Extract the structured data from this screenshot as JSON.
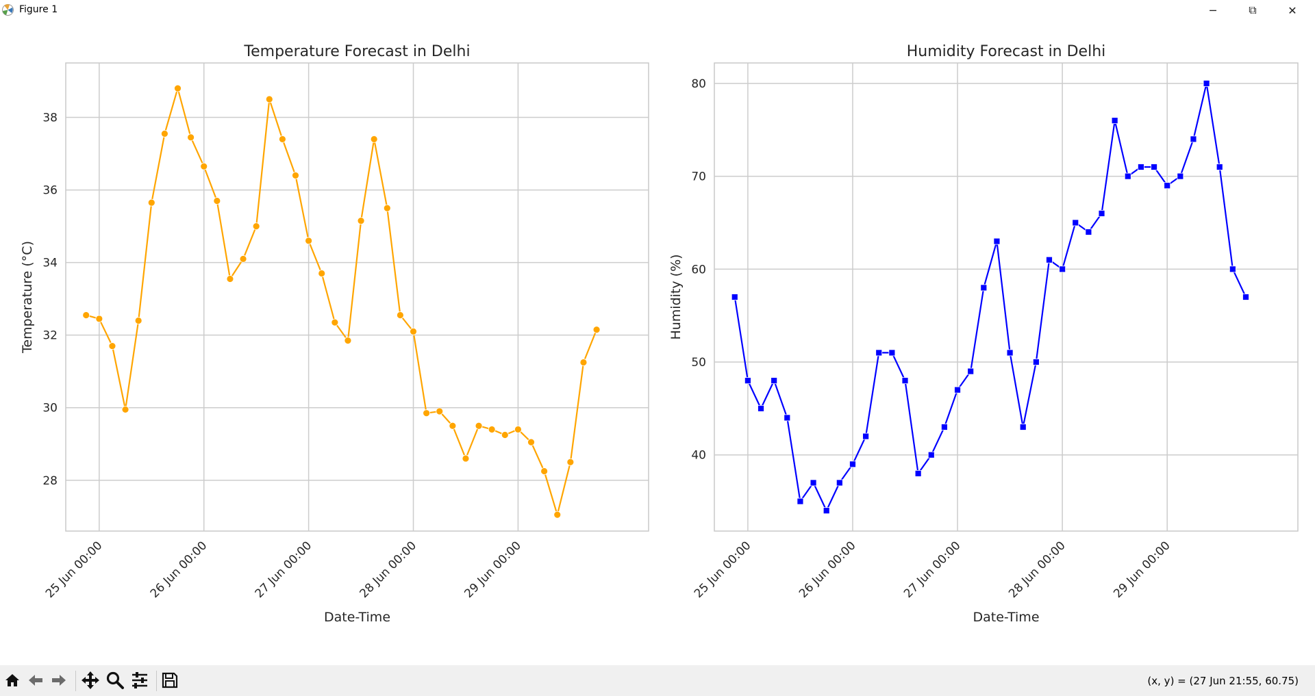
{
  "window": {
    "title": "Figure 1",
    "minimize_glyph": "─",
    "maximize_glyph": "⧉",
    "close_glyph": "✕"
  },
  "toolbar": {
    "buttons": [
      "home-icon",
      "back-icon",
      "forward-icon",
      "pan-icon",
      "zoom-icon",
      "configure-subplots-icon",
      "save-icon"
    ],
    "coords_readout": "(x, y) = (27 Jun 21:55, 60.75)"
  },
  "colors": {
    "temperature_line": "#FFA500",
    "humidity_line": "#0000FF",
    "grid": "#cccccc",
    "axes_edge": "#c8c8c8"
  },
  "chart_data": [
    {
      "type": "line",
      "title": "Temperature Forecast in Delhi",
      "xlabel": "Date-Time",
      "ylabel": "Temperature (°C)",
      "x_ticks": [
        "25 Jun 00:00",
        "26 Jun 00:00",
        "27 Jun 00:00",
        "28 Jun 00:00",
        "29 Jun 00:00"
      ],
      "y_ticks": [
        28,
        30,
        32,
        34,
        36,
        38
      ],
      "ylim": [
        26.6,
        39.5
      ],
      "x_range": [
        "24 Jun 16:20",
        "30 Jun 05:55"
      ],
      "marker": "circle",
      "grid": true,
      "series": [
        {
          "color": "#FFA500",
          "x": [
            "24 Jun 21:00",
            "25 Jun 00:00",
            "25 Jun 03:00",
            "25 Jun 06:00",
            "25 Jun 09:00",
            "25 Jun 12:00",
            "25 Jun 15:00",
            "25 Jun 18:00",
            "25 Jun 21:00",
            "26 Jun 00:00",
            "26 Jun 03:00",
            "26 Jun 06:00",
            "26 Jun 09:00",
            "26 Jun 12:00",
            "26 Jun 15:00",
            "26 Jun 18:00",
            "26 Jun 21:00",
            "27 Jun 00:00",
            "27 Jun 03:00",
            "27 Jun 06:00",
            "27 Jun 09:00",
            "27 Jun 12:00",
            "27 Jun 15:00",
            "27 Jun 18:00",
            "27 Jun 21:00",
            "28 Jun 00:00",
            "28 Jun 03:00",
            "28 Jun 06:00",
            "28 Jun 09:00",
            "28 Jun 12:00",
            "28 Jun 15:00",
            "28 Jun 18:00",
            "28 Jun 21:00",
            "29 Jun 00:00",
            "29 Jun 03:00",
            "29 Jun 06:00",
            "29 Jun 09:00",
            "29 Jun 12:00",
            "29 Jun 15:00",
            "29 Jun 18:00"
          ],
          "values": [
            32.55,
            32.45,
            31.7,
            29.95,
            32.4,
            35.65,
            37.55,
            38.8,
            37.45,
            36.65,
            35.7,
            33.55,
            34.1,
            35.0,
            38.5,
            37.4,
            36.4,
            34.6,
            33.7,
            32.35,
            31.85,
            35.15,
            37.4,
            35.5,
            32.55,
            32.1,
            29.85,
            29.9,
            29.5,
            28.6,
            29.5,
            29.4,
            29.25,
            29.4,
            29.05,
            28.25,
            27.05,
            28.5,
            31.25,
            32.15
          ]
        }
      ]
    },
    {
      "type": "line",
      "title": "Humidity Forecast in Delhi",
      "xlabel": "Date-Time",
      "ylabel": "Humidity (%)",
      "x_ticks": [
        "25 Jun 00:00",
        "26 Jun 00:00",
        "27 Jun 00:00",
        "28 Jun 00:00",
        "29 Jun 00:00"
      ],
      "y_ticks": [
        40,
        50,
        60,
        70,
        80
      ],
      "ylim": [
        31.8,
        82.2
      ],
      "x_range": [
        "24 Jun 16:20",
        "30 Jun 05:55"
      ],
      "marker": "square",
      "grid": true,
      "series": [
        {
          "color": "#0000FF",
          "x": [
            "24 Jun 21:00",
            "25 Jun 00:00",
            "25 Jun 03:00",
            "25 Jun 06:00",
            "25 Jun 09:00",
            "25 Jun 12:00",
            "25 Jun 15:00",
            "25 Jun 18:00",
            "25 Jun 21:00",
            "26 Jun 00:00",
            "26 Jun 03:00",
            "26 Jun 06:00",
            "26 Jun 09:00",
            "26 Jun 12:00",
            "26 Jun 15:00",
            "26 Jun 18:00",
            "26 Jun 21:00",
            "27 Jun 00:00",
            "27 Jun 03:00",
            "27 Jun 06:00",
            "27 Jun 09:00",
            "27 Jun 12:00",
            "27 Jun 15:00",
            "27 Jun 18:00",
            "27 Jun 21:00",
            "28 Jun 00:00",
            "28 Jun 03:00",
            "28 Jun 06:00",
            "28 Jun 09:00",
            "28 Jun 12:00",
            "28 Jun 15:00",
            "28 Jun 18:00",
            "28 Jun 21:00",
            "29 Jun 00:00",
            "29 Jun 03:00",
            "29 Jun 06:00",
            "29 Jun 09:00",
            "29 Jun 12:00",
            "29 Jun 15:00",
            "29 Jun 18:00"
          ],
          "values": [
            57,
            48,
            45,
            48,
            44,
            35,
            37,
            34,
            37,
            39,
            42,
            51,
            51,
            48,
            38,
            40,
            43,
            47,
            49,
            58,
            63,
            51,
            43,
            50,
            61,
            60,
            65,
            64,
            66,
            76,
            70,
            71,
            71,
            69,
            70,
            74,
            80,
            71,
            60,
            57
          ]
        }
      ]
    }
  ]
}
